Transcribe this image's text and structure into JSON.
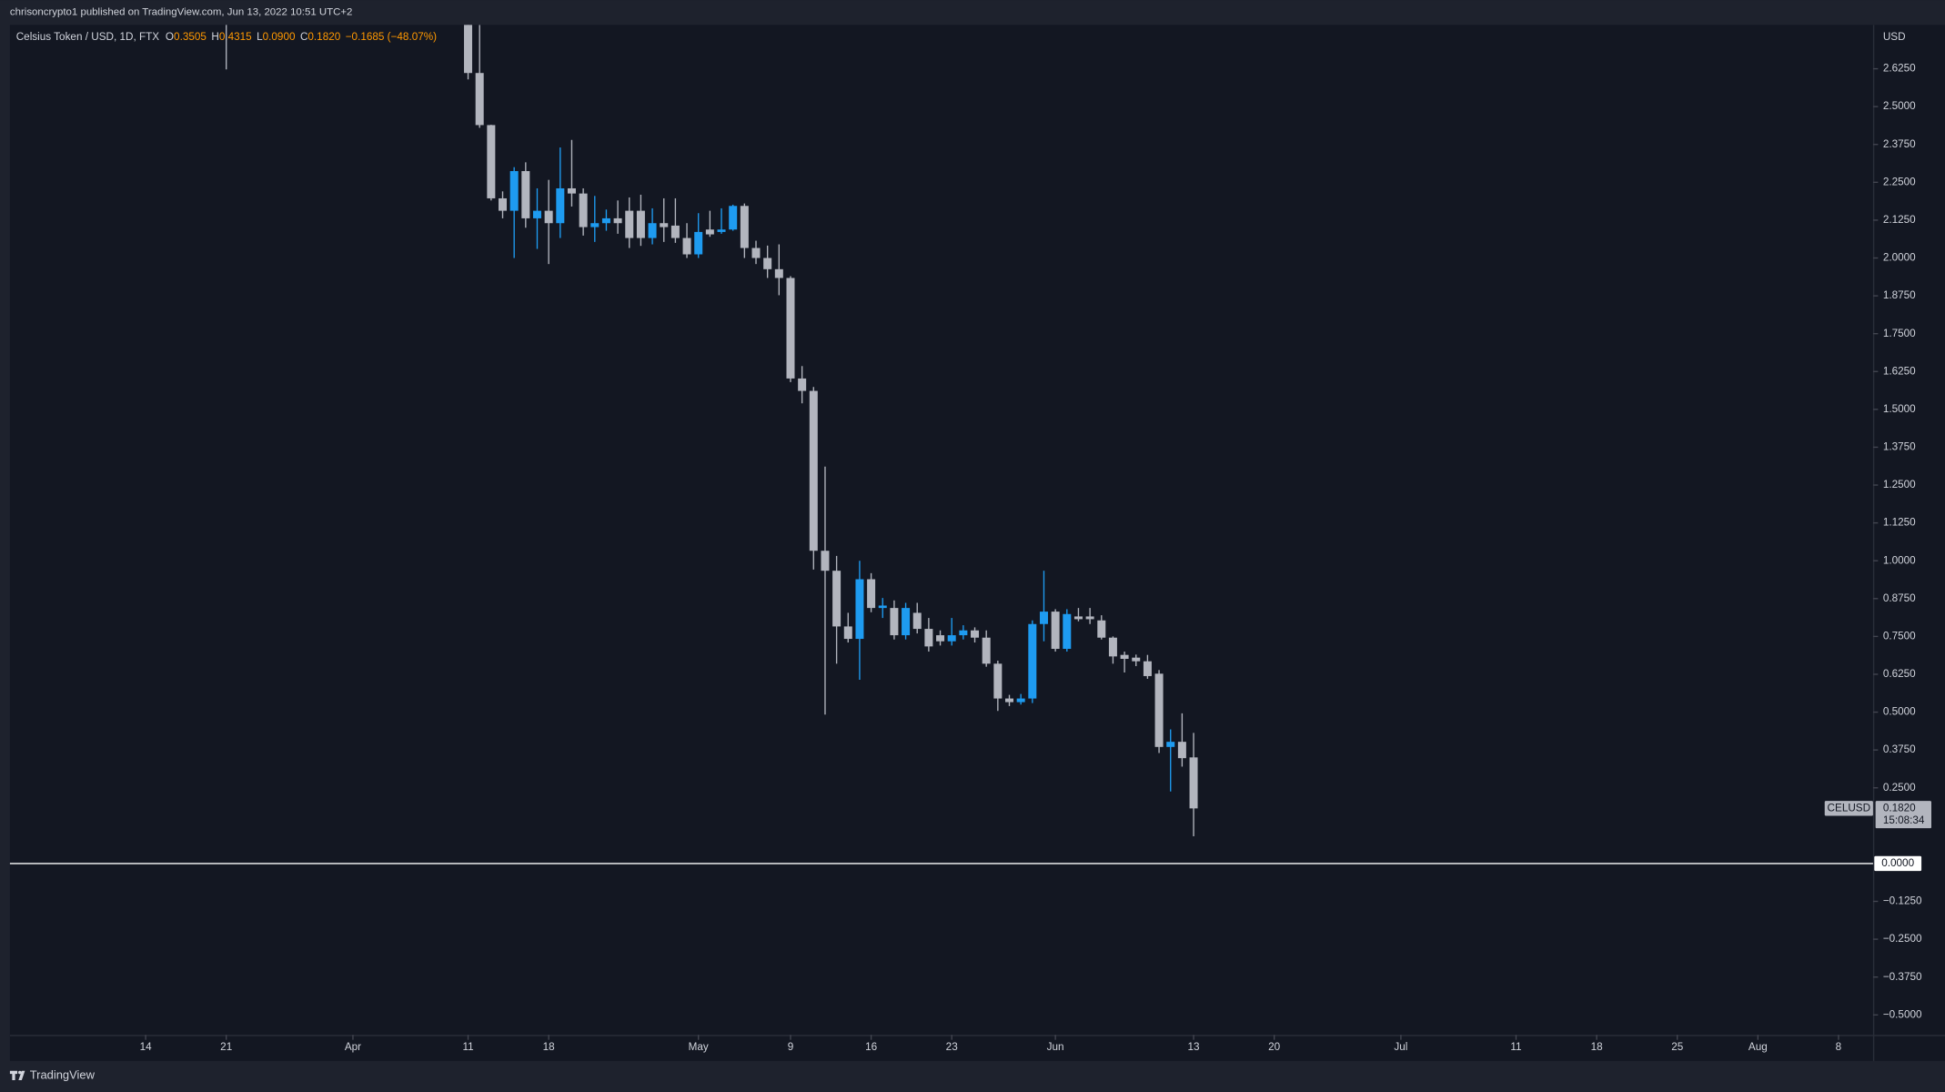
{
  "header": {
    "attribution": "chrisoncrypto1 published on TradingView.com, Jun 13, 2022 10:51 UTC+2",
    "symbol": "Celsius Token / USD, 1D, FTX",
    "ohlc": [
      {
        "label": "O",
        "value": "0.3505"
      },
      {
        "label": "H",
        "value": "0.4315"
      },
      {
        "label": "L",
        "value": "0.0900"
      },
      {
        "label": "C",
        "value": "0.1820"
      }
    ],
    "change": "−0.1685 (−48.07%)"
  },
  "footer": {
    "brand": "TradingView"
  },
  "chart_data": {
    "type": "candlestick",
    "y_unit": "USD",
    "up_color": "#1e9bf0",
    "down_color": "#b2b5be",
    "x": [
      "2022-03-21",
      "2022-04-11",
      "2022-04-12",
      "2022-04-13",
      "2022-04-14",
      "2022-04-15",
      "2022-04-16",
      "2022-04-17",
      "2022-04-18",
      "2022-04-19",
      "2022-04-20",
      "2022-04-21",
      "2022-04-22",
      "2022-04-23",
      "2022-04-24",
      "2022-04-25",
      "2022-04-26",
      "2022-04-27",
      "2022-04-28",
      "2022-04-29",
      "2022-04-30",
      "2022-05-01",
      "2022-05-02",
      "2022-05-03",
      "2022-05-04",
      "2022-05-05",
      "2022-05-06",
      "2022-05-07",
      "2022-05-08",
      "2022-05-09",
      "2022-05-10",
      "2022-05-11",
      "2022-05-12",
      "2022-05-13",
      "2022-05-14",
      "2022-05-15",
      "2022-05-16",
      "2022-05-17",
      "2022-05-18",
      "2022-05-19",
      "2022-05-20",
      "2022-05-21",
      "2022-05-22",
      "2022-05-23",
      "2022-05-24",
      "2022-05-25",
      "2022-05-26",
      "2022-05-27",
      "2022-05-28",
      "2022-05-29",
      "2022-05-30",
      "2022-05-31",
      "2022-06-01",
      "2022-06-02",
      "2022-06-03",
      "2022-06-04",
      "2022-06-05",
      "2022-06-06",
      "2022-06-07",
      "2022-06-08",
      "2022-06-09",
      "2022-06-10",
      "2022-06-11",
      "2022-06-12",
      "2022-06-13"
    ],
    "open": [
      3.05,
      2.9,
      2.611,
      2.439,
      2.197,
      2.156,
      2.287,
      2.131,
      2.156,
      2.115,
      2.23,
      2.213,
      2.102,
      2.115,
      2.131,
      2.156,
      2.156,
      2.066,
      2.115,
      2.107,
      2.066,
      2.012,
      2.094,
      2.086,
      2.094,
      2.172,
      2.033,
      2.0,
      1.963,
      1.934,
      1.602,
      1.561,
      1.033,
      0.967,
      0.783,
      0.742,
      0.939,
      0.844,
      0.844,
      0.754,
      0.828,
      0.775,
      0.754,
      0.734,
      0.754,
      0.77,
      0.746,
      0.66,
      0.545,
      0.533,
      0.545,
      0.791,
      0.832,
      0.709,
      0.816,
      0.816,
      0.803,
      0.746,
      0.689,
      0.68,
      0.668,
      0.627,
      0.385,
      0.402,
      0.3505
    ],
    "high": [
      3.25,
      3.0,
      2.77,
      2.44,
      2.22,
      2.3,
      2.316,
      2.23,
      2.258,
      2.365,
      2.39,
      2.23,
      2.205,
      2.16,
      2.19,
      2.2,
      2.209,
      2.164,
      2.197,
      2.197,
      2.115,
      2.148,
      2.156,
      2.164,
      2.176,
      2.18,
      2.057,
      2.041,
      2.045,
      1.94,
      1.643,
      1.574,
      1.311,
      1.016,
      0.828,
      1.0,
      0.959,
      0.877,
      0.869,
      0.861,
      0.861,
      0.811,
      0.77,
      0.811,
      0.787,
      0.78,
      0.77,
      0.67,
      0.557,
      0.56,
      0.803,
      0.967,
      0.84,
      0.84,
      0.844,
      0.844,
      0.82,
      0.75,
      0.7,
      0.69,
      0.689,
      0.639,
      0.443,
      0.496,
      0.4315
    ],
    "low": [
      2.623,
      2.59,
      2.43,
      2.19,
      2.131,
      2.0,
      2.1,
      2.03,
      1.98,
      2.066,
      2.17,
      2.074,
      2.053,
      2.09,
      2.08,
      2.033,
      2.04,
      2.045,
      2.053,
      2.05,
      2.0,
      2.0,
      2.07,
      2.08,
      2.09,
      2.0,
      1.98,
      1.934,
      1.877,
      1.59,
      1.52,
      0.971,
      0.492,
      0.66,
      0.73,
      0.607,
      0.83,
      0.811,
      0.74,
      0.74,
      0.76,
      0.7,
      0.72,
      0.72,
      0.74,
      0.73,
      0.65,
      0.504,
      0.52,
      0.525,
      0.53,
      0.734,
      0.7,
      0.7,
      0.8,
      0.791,
      0.74,
      0.66,
      0.631,
      0.652,
      0.61,
      0.365,
      0.238,
      0.32,
      0.09
    ],
    "close": [
      2.95,
      2.611,
      2.439,
      2.197,
      2.156,
      2.287,
      2.131,
      2.156,
      2.115,
      2.23,
      2.213,
      2.102,
      2.115,
      2.131,
      2.115,
      2.066,
      2.066,
      2.115,
      2.102,
      2.066,
      2.012,
      2.086,
      2.078,
      2.094,
      2.172,
      2.033,
      2.0,
      1.963,
      1.934,
      1.602,
      1.561,
      1.033,
      0.967,
      0.783,
      0.742,
      0.939,
      0.844,
      0.852,
      0.754,
      0.844,
      0.775,
      0.717,
      0.734,
      0.754,
      0.77,
      0.746,
      0.66,
      0.545,
      0.533,
      0.545,
      0.791,
      0.832,
      0.709,
      0.824,
      0.807,
      0.807,
      0.746,
      0.684,
      0.676,
      0.668,
      0.619,
      0.385,
      0.402,
      0.348,
      0.182
    ],
    "xlim": [
      "2022-03-02",
      "2022-08-11"
    ],
    "xticks": [
      {
        "value": "2022-03-14",
        "label": "14"
      },
      {
        "value": "2022-03-21",
        "label": "21"
      },
      {
        "value": "2022-04-01",
        "label": "Apr"
      },
      {
        "value": "2022-04-11",
        "label": "11"
      },
      {
        "value": "2022-04-18",
        "label": "18"
      },
      {
        "value": "2022-05-01",
        "label": "May"
      },
      {
        "value": "2022-05-09",
        "label": "9"
      },
      {
        "value": "2022-05-16",
        "label": "16"
      },
      {
        "value": "2022-05-23",
        "label": "23"
      },
      {
        "value": "2022-06-01",
        "label": "Jun"
      },
      {
        "value": "2022-06-13",
        "label": "13"
      },
      {
        "value": "2022-06-20",
        "label": "20"
      },
      {
        "value": "2022-07-01",
        "label": "Jul"
      },
      {
        "value": "2022-07-11",
        "label": "11"
      },
      {
        "value": "2022-07-18",
        "label": "18"
      },
      {
        "value": "2022-07-25",
        "label": "25"
      },
      {
        "value": "2022-08-01",
        "label": "Aug"
      },
      {
        "value": "2022-08-08",
        "label": "8"
      }
    ],
    "ylim": [
      -0.566,
      2.77
    ],
    "yticks": [
      {
        "value": 2.625,
        "label": "2.6250"
      },
      {
        "value": 2.5,
        "label": "2.5000"
      },
      {
        "value": 2.375,
        "label": "2.3750"
      },
      {
        "value": 2.25,
        "label": "2.2500"
      },
      {
        "value": 2.125,
        "label": "2.1250"
      },
      {
        "value": 2,
        "label": "2.0000"
      },
      {
        "value": 1.875,
        "label": "1.8750"
      },
      {
        "value": 1.75,
        "label": "1.7500"
      },
      {
        "value": 1.625,
        "label": "1.6250"
      },
      {
        "value": 1.5,
        "label": "1.5000"
      },
      {
        "value": 1.375,
        "label": "1.3750"
      },
      {
        "value": 1.25,
        "label": "1.2500"
      },
      {
        "value": 1.125,
        "label": "1.1250"
      },
      {
        "value": 1,
        "label": "1.0000"
      },
      {
        "value": 0.875,
        "label": "0.8750"
      },
      {
        "value": 0.75,
        "label": "0.7500"
      },
      {
        "value": 0.625,
        "label": "0.6250"
      },
      {
        "value": 0.5,
        "label": "0.5000"
      },
      {
        "value": 0.375,
        "label": "0.3750"
      },
      {
        "value": 0.25,
        "label": "0.2500"
      },
      {
        "value": -0.125,
        "label": "−0.1250"
      },
      {
        "value": -0.25,
        "label": "−0.2500"
      },
      {
        "value": -0.375,
        "label": "−0.3750"
      },
      {
        "value": -0.5,
        "label": "−0.5000"
      }
    ],
    "hline": {
      "value": 0,
      "label": "0.0000"
    },
    "price_tag": {
      "symbol": "CELUSD",
      "value": 0.182,
      "label": "0.1820",
      "countdown": "15:08:34"
    }
  }
}
